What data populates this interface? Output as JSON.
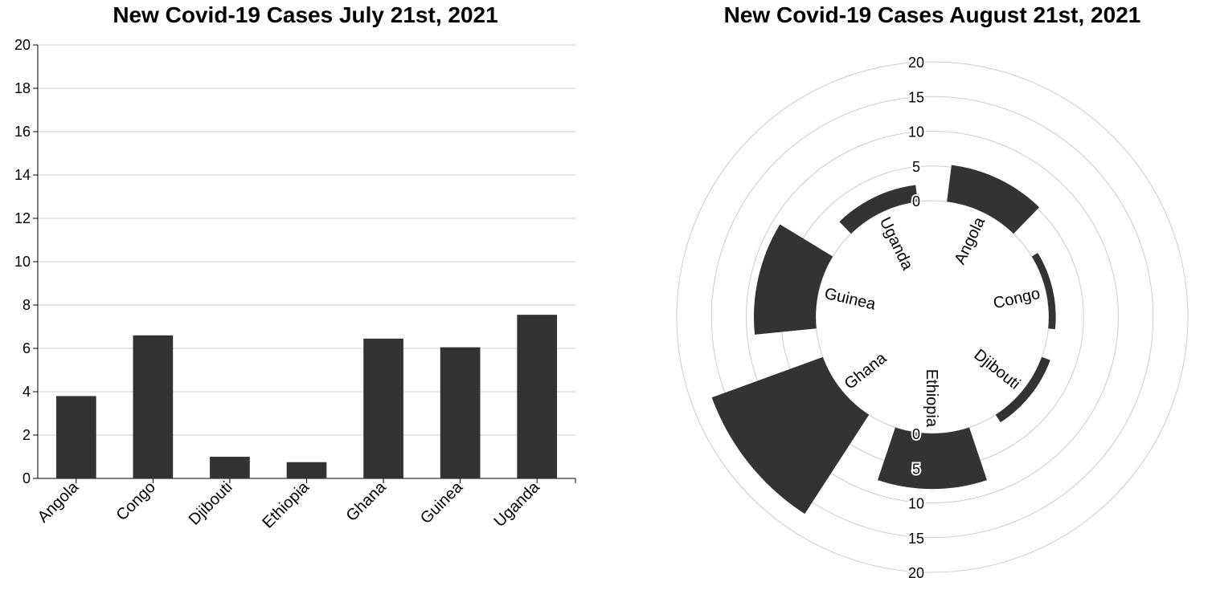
{
  "chart_data": [
    {
      "type": "bar",
      "title": "New Covid-19 Cases July 21st, 2021",
      "categories": [
        "Angola",
        "Congo",
        "Djibouti",
        "Ethiopia",
        "Ghana",
        "Guinea",
        "Uganda"
      ],
      "values": [
        3.8,
        6.6,
        1.0,
        0.75,
        6.45,
        6.05,
        7.55
      ],
      "ylim": [
        0,
        20
      ],
      "yticks": [
        "0",
        "2",
        "4",
        "6",
        "8",
        "10",
        "12",
        "14",
        "16",
        "18",
        "20"
      ],
      "grid": true,
      "bar_color": "#333333"
    },
    {
      "type": "bar",
      "polar": true,
      "title": "New Covid-19 Cases August 21st, 2021",
      "categories": [
        "Angola",
        "Congo",
        "Djibouti",
        "Ethiopia",
        "Ghana",
        "Guinea",
        "Uganda"
      ],
      "values": [
        5.3,
        1.0,
        1.3,
        8.0,
        17.0,
        8.9,
        2.4
      ],
      "rlim": [
        0,
        20
      ],
      "rticks": [
        "0",
        "5",
        "10",
        "15",
        "20"
      ],
      "grid": true,
      "bar_color": "#333333"
    }
  ]
}
